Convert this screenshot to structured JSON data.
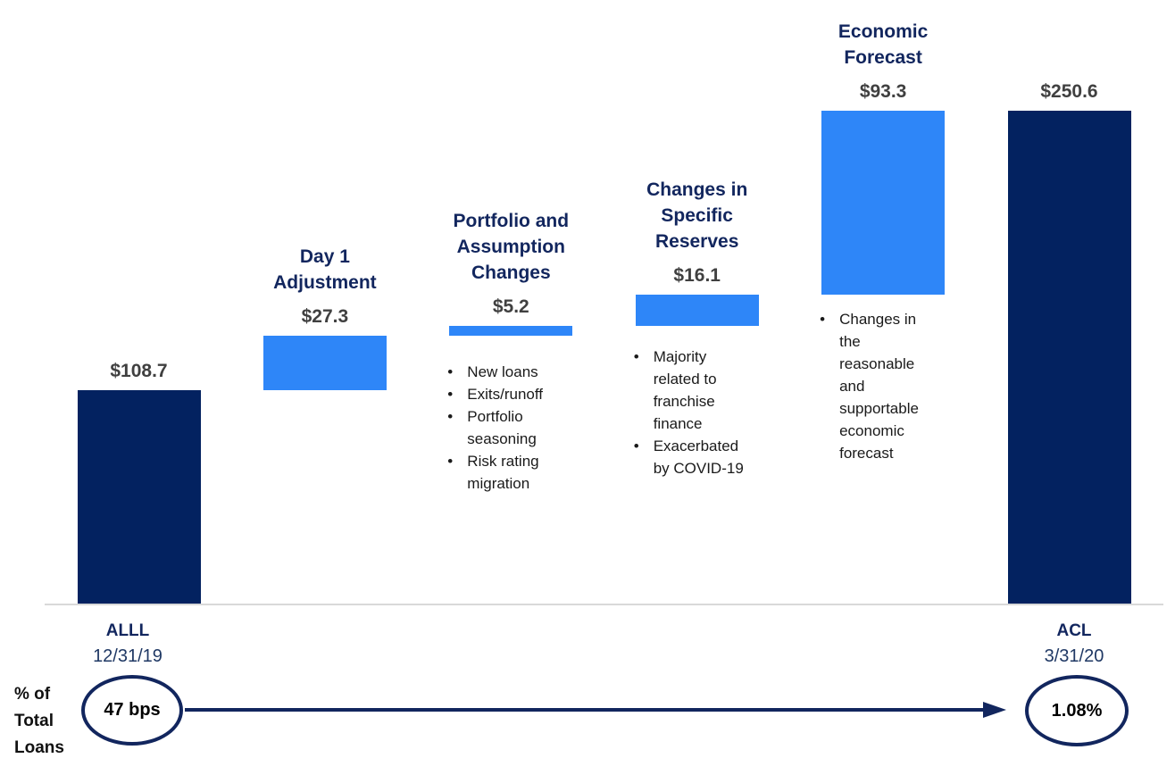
{
  "chart_data": {
    "type": "bar",
    "subtype": "waterfall",
    "title": "",
    "xlabel": "",
    "ylabel": "",
    "ylim": [
      0,
      250.6
    ],
    "grid": false,
    "legend": false,
    "bullet_glyph": "•",
    "categories": [
      "ALLL 12/31/19",
      "Day 1 Adjustment",
      "Portfolio and Assumption Changes",
      "Changes in Specific Reserves",
      "Economic Forecast",
      "ACL 3/31/20"
    ],
    "values": [
      108.7,
      27.3,
      5.2,
      16.1,
      93.3,
      250.6
    ],
    "columns": [
      {
        "id": "alll",
        "title_lines": [],
        "value": 108.7,
        "value_label": "$108.7",
        "bar_role": "total",
        "start": 0,
        "end": 108.7,
        "bullets": [],
        "axis_name": "ALLL",
        "axis_date": "12/31/19"
      },
      {
        "id": "day1-adjustment",
        "title_lines": [
          "Day 1",
          "Adjustment"
        ],
        "value": 27.3,
        "value_label": "$27.3",
        "bar_role": "change",
        "start": 108.7,
        "end": 136.0,
        "bullets": [],
        "axis_name": "",
        "axis_date": ""
      },
      {
        "id": "portfolio-assumption-changes",
        "title_lines": [
          "Portfolio and",
          "Assumption",
          "Changes"
        ],
        "value": 5.2,
        "value_label": "$5.2",
        "bar_role": "change",
        "start": 136.0,
        "end": 141.2,
        "bullets": [
          "New loans",
          "Exits/runoff",
          "Portfolio seasoning",
          "Risk rating migration"
        ],
        "axis_name": "",
        "axis_date": ""
      },
      {
        "id": "changes-specific-reserves",
        "title_lines": [
          "Changes in",
          "Specific",
          "Reserves"
        ],
        "value": 16.1,
        "value_label": "$16.1",
        "bar_role": "change",
        "start": 141.2,
        "end": 157.3,
        "bullets": [
          "Majority related to franchise finance",
          "Exacerbated by COVID-19"
        ],
        "axis_name": "",
        "axis_date": ""
      },
      {
        "id": "economic-forecast",
        "title_lines": [
          "Economic",
          "Forecast"
        ],
        "value": 93.3,
        "value_label": "$93.3",
        "bar_role": "change",
        "start": 157.3,
        "end": 250.6,
        "bullets": [
          "Changes in the reasonable and supportable economic forecast"
        ],
        "axis_name": "",
        "axis_date": ""
      },
      {
        "id": "acl",
        "title_lines": [],
        "value": 250.6,
        "value_label": "$250.6",
        "bar_role": "total",
        "start": 0,
        "end": 250.6,
        "bullets": [],
        "axis_name": "ACL",
        "axis_date": "3/31/20"
      }
    ],
    "footer": {
      "row_label": "% of Total Loans",
      "row_label_lines": [
        "% of",
        "Total",
        "Loans"
      ],
      "start_metric": "47 bps",
      "end_metric": "1.08%"
    },
    "colors": {
      "total_bar": "#032260",
      "change_bar": "#2E86F8",
      "title_text": "#12265E",
      "axis_name_text": "#12265E",
      "axis_date_text": "#1F3864",
      "value_text": "#404040",
      "bullet_text": "#1A1A1A",
      "baseline": "#D9D9D9",
      "arrow": "#12265E",
      "badge_border": "#12265E"
    }
  }
}
